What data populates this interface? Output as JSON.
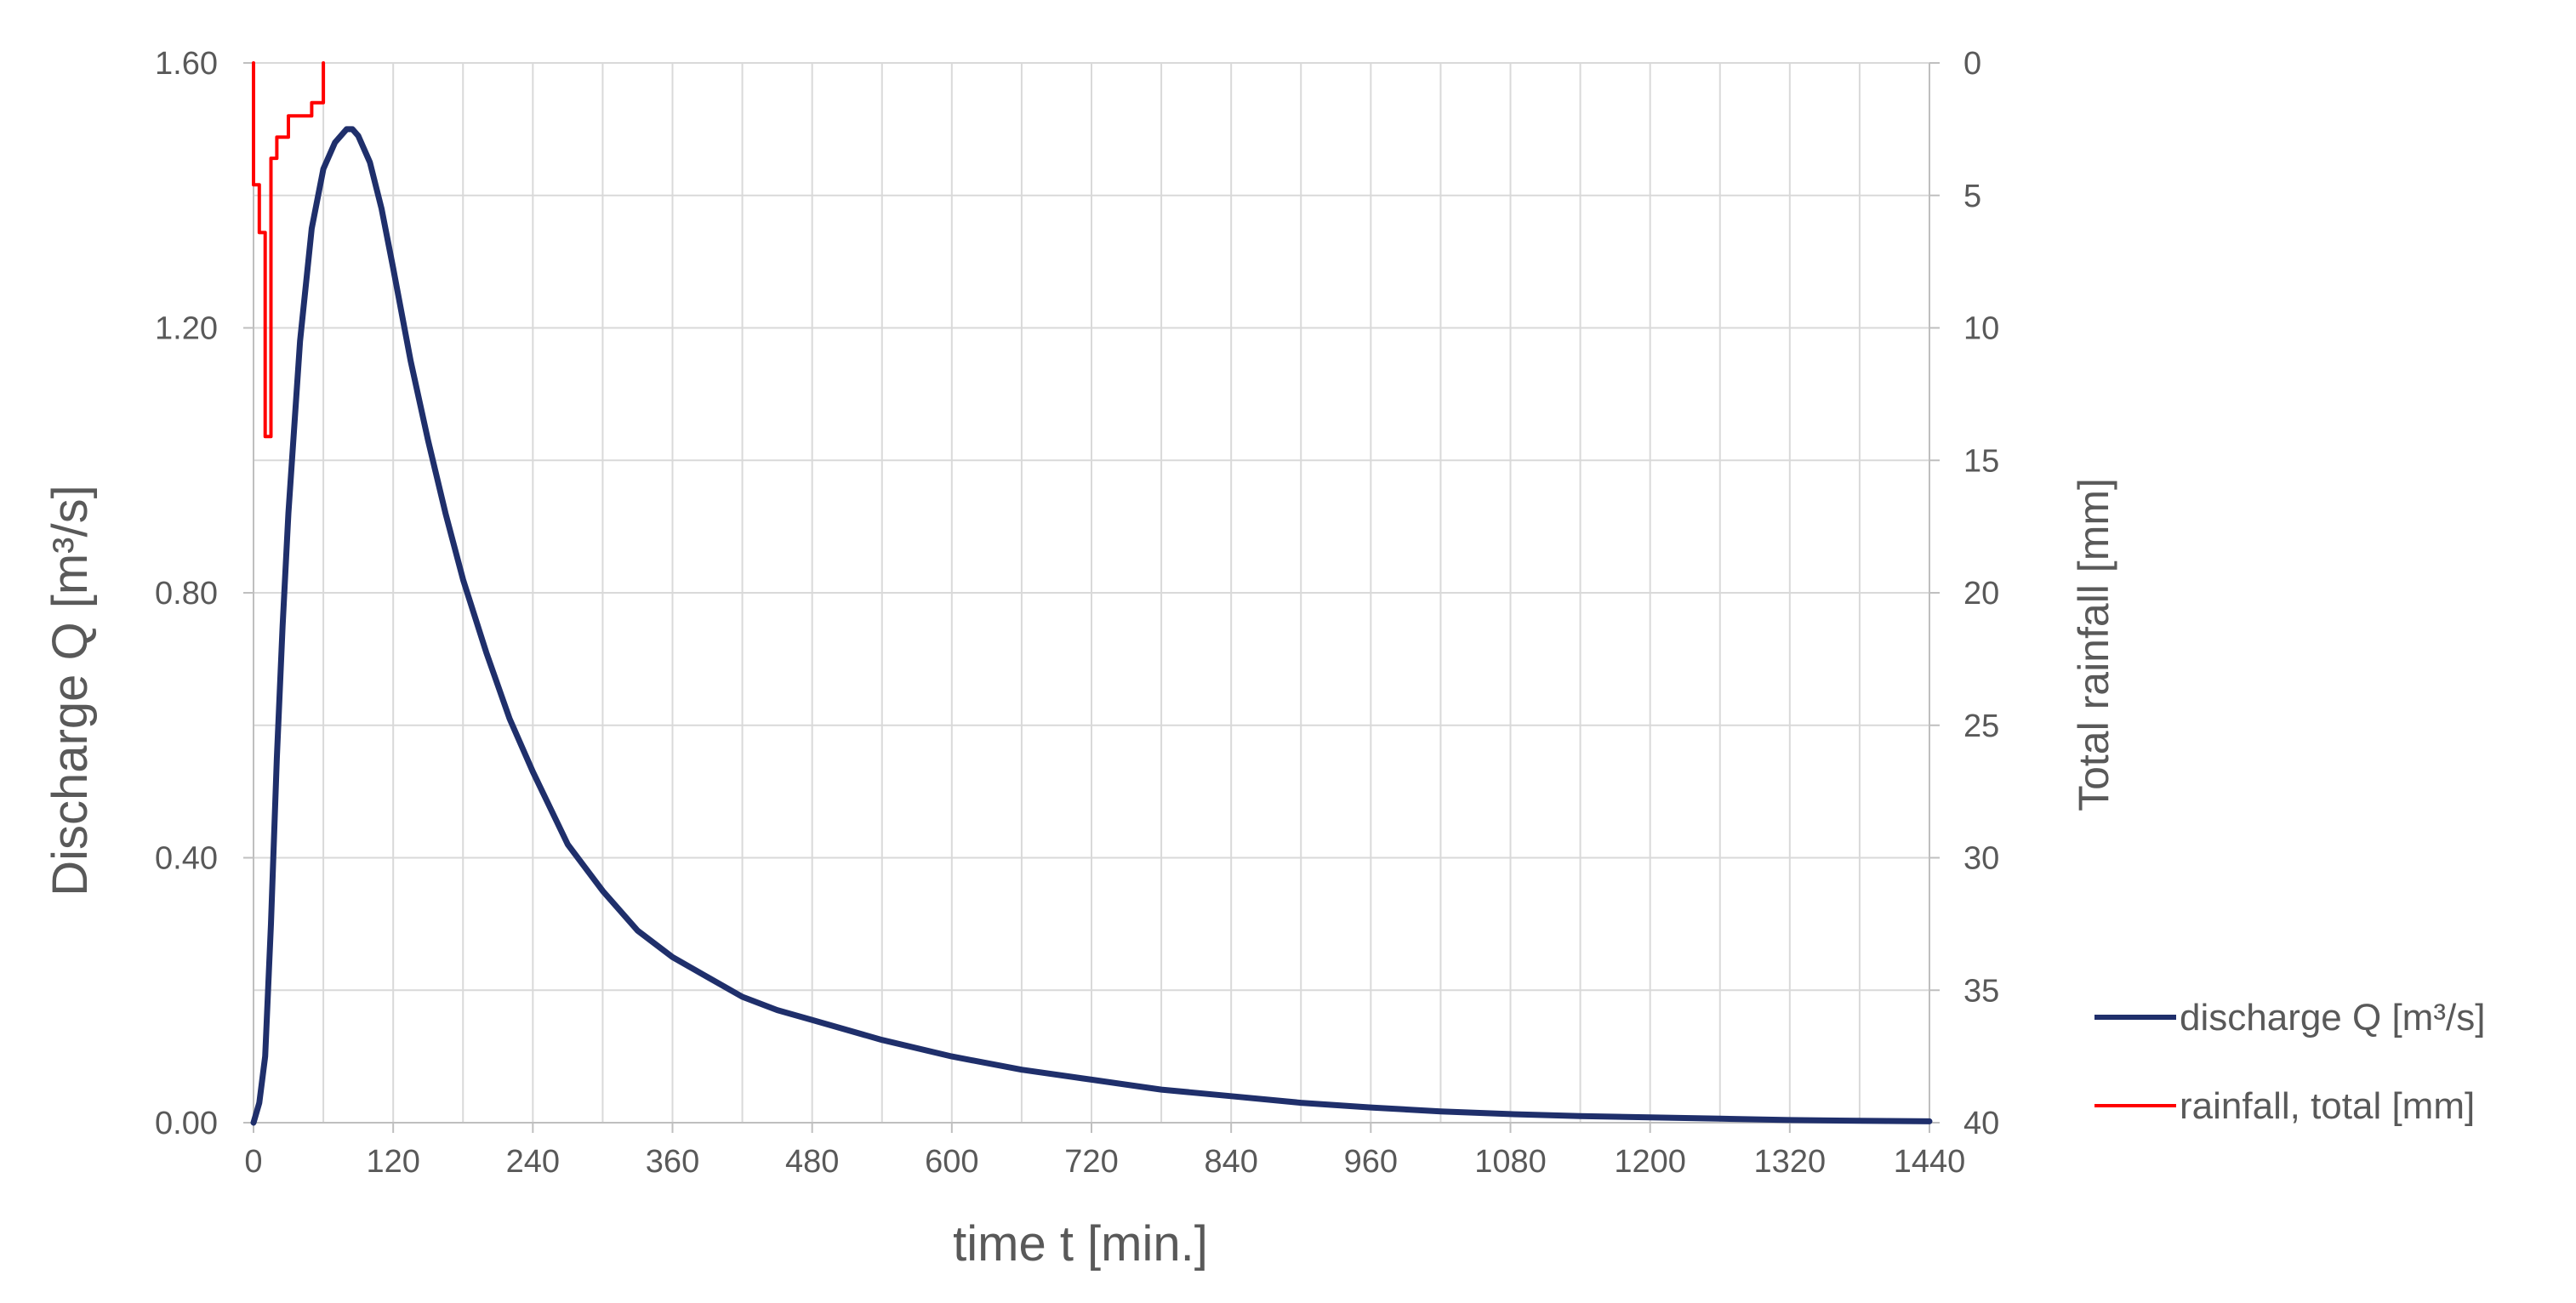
{
  "chart_data": {
    "type": "line",
    "xlabel": "time t [min.]",
    "ylabel": "Discharge Q [m³/s]",
    "y2label": "Total rainfall [mm]",
    "xlim": [
      0,
      1440
    ],
    "ylim": [
      0,
      1.6
    ],
    "y2lim": [
      0,
      40
    ],
    "y2_inverted": true,
    "grid": true,
    "legend_position": "right",
    "x_ticks": [
      "0",
      "120",
      "240",
      "360",
      "480",
      "600",
      "720",
      "840",
      "960",
      "1080",
      "1200",
      "1320",
      "1440"
    ],
    "y_ticks": [
      "0.00",
      "0.40",
      "0.80",
      "1.20",
      "1.60"
    ],
    "y2_ticks": [
      "0",
      "5",
      "10",
      "15",
      "20",
      "25",
      "30",
      "35",
      "40"
    ],
    "colors": {
      "discharge": "#1f2f6b",
      "rainfall": "#ff0000",
      "grid": "#d9d9d9",
      "axis": "#bfbfbf"
    },
    "series": [
      {
        "name": "discharge Q [m³/s]",
        "axis": "left",
        "x": [
          0,
          5,
          10,
          15,
          20,
          25,
          30,
          40,
          50,
          60,
          70,
          80,
          85,
          90,
          100,
          110,
          120,
          135,
          150,
          165,
          180,
          200,
          220,
          240,
          270,
          300,
          330,
          360,
          390,
          420,
          450,
          480,
          540,
          600,
          660,
          720,
          780,
          840,
          900,
          960,
          1020,
          1080,
          1140,
          1200,
          1260,
          1320,
          1380,
          1440
        ],
        "y": [
          0,
          0.03,
          0.1,
          0.3,
          0.55,
          0.75,
          0.92,
          1.18,
          1.35,
          1.44,
          1.48,
          1.5,
          1.5,
          1.49,
          1.45,
          1.38,
          1.29,
          1.15,
          1.03,
          0.92,
          0.82,
          0.71,
          0.61,
          0.53,
          0.42,
          0.35,
          0.29,
          0.25,
          0.22,
          0.19,
          0.17,
          0.155,
          0.125,
          0.1,
          0.08,
          0.065,
          0.05,
          0.04,
          0.03,
          0.023,
          0.017,
          0.013,
          0.01,
          0.008,
          0.006,
          0.004,
          0.003,
          0.002
        ]
      },
      {
        "name": "rainfall, total [mm]",
        "axis": "right",
        "step": true,
        "x": [
          0,
          0,
          5,
          5,
          10,
          10,
          15,
          15,
          20,
          20,
          30,
          30,
          50,
          50,
          60,
          60
        ],
        "y": [
          0,
          4.6,
          4.6,
          6.4,
          6.4,
          14.1,
          14.1,
          3.6,
          3.6,
          2.8,
          2.8,
          2.0,
          2.0,
          1.5,
          1.5,
          0
        ]
      }
    ]
  }
}
